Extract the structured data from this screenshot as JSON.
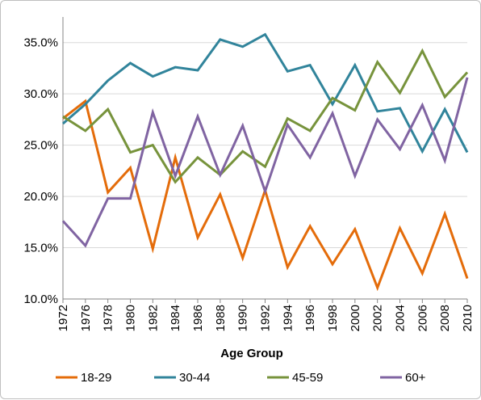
{
  "chart_data": {
    "type": "line",
    "title": "",
    "xlabel": "Age Group",
    "ylabel": "",
    "x": [
      "1972",
      "1976",
      "1978",
      "1980",
      "1982",
      "1984",
      "1986",
      "1988",
      "1990",
      "1992",
      "1994",
      "1996",
      "1998",
      "2000",
      "2002",
      "2004",
      "2006",
      "2008",
      "2010"
    ],
    "ylim": [
      10,
      37.5
    ],
    "yticks": [
      10,
      15,
      20,
      25,
      30,
      35
    ],
    "ytick_labels": [
      "10.0%",
      "15.0%",
      "20.0%",
      "25.0%",
      "30.0%",
      "35.0%"
    ],
    "grid": "horizontal",
    "legend_position": "bottom",
    "series": [
      {
        "name": "18-29",
        "color": "#e46c0a",
        "values": [
          27.6,
          29.3,
          20.4,
          22.8,
          14.9,
          23.8,
          16.0,
          20.2,
          14.0,
          20.6,
          13.1,
          17.1,
          13.4,
          16.8,
          11.1,
          16.9,
          12.5,
          18.3,
          12.0
        ]
      },
      {
        "name": "30-44",
        "color": "#31849b",
        "values": [
          27.1,
          29.0,
          31.3,
          33.0,
          31.7,
          32.6,
          32.3,
          35.3,
          34.6,
          35.8,
          32.2,
          32.8,
          29.0,
          32.8,
          28.3,
          28.6,
          24.4,
          28.5,
          24.3
        ]
      },
      {
        "name": "45-59",
        "color": "#77933c",
        "values": [
          27.8,
          26.4,
          28.5,
          24.3,
          25.0,
          21.4,
          23.8,
          22.1,
          24.4,
          22.9,
          27.6,
          26.4,
          29.6,
          28.4,
          33.1,
          30.1,
          34.2,
          29.7,
          32.1
        ]
      },
      {
        "name": "60+",
        "color": "#8064a2",
        "values": [
          17.6,
          15.2,
          19.8,
          19.8,
          28.2,
          22.0,
          27.8,
          22.1,
          26.9,
          20.5,
          27.0,
          23.8,
          28.1,
          22.0,
          27.5,
          24.6,
          28.9,
          23.5,
          31.6
        ]
      }
    ]
  }
}
